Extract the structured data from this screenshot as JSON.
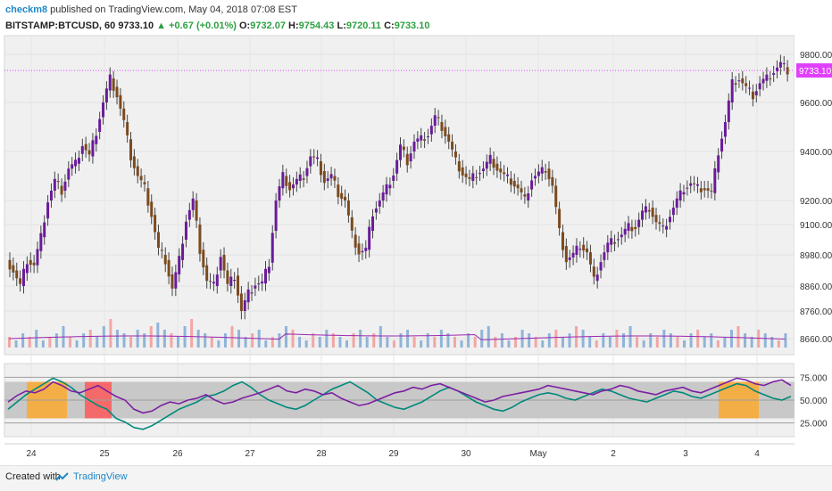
{
  "header": {
    "user": "checkm8",
    "published": "published on TradingView.com, May 04, 2018 07:08 EST",
    "symbol": "BITSTAMP:BTCUSD, 60",
    "last": "9733.10",
    "change": "▲ +0.67 (+0.01%)",
    "o_label": "O:",
    "o": "9732.07",
    "h_label": "H:",
    "h": "9754.43",
    "l_label": "L:",
    "l": "9720.11",
    "c_label": "C:",
    "c": "9733.10"
  },
  "footer": {
    "created": "Created with",
    "brand": "TradingView"
  },
  "colors": {
    "up": "#6a1b9a",
    "down": "#7b4a1e",
    "price_line": "#e040fb",
    "rsi_a": "#7b1fa2",
    "rsi_b": "#00897b",
    "heat": "#ffa726",
    "heat_strong": "#ff5252",
    "vol_up": "#90b4d8",
    "vol_down": "#f2a6a6",
    "vol_ma": "#9c27b0"
  },
  "chart_data": {
    "type": "line",
    "price_axis": {
      "ticks": [
        8660,
        8760,
        8860,
        8980,
        9100,
        9200,
        9400,
        9600,
        9800
      ],
      "tick_labels": [
        "8660.00",
        "8760.00",
        "8860.00",
        "8980.00",
        "9100.00",
        "9200.00",
        "9400.00",
        "9600.00",
        "9800.00"
      ],
      "current": 9733.1,
      "current_label": "9733.10"
    },
    "rsi_axis": {
      "ticks": [
        25,
        50,
        75
      ],
      "tick_labels": [
        "25.000",
        "50.000",
        "75.000"
      ]
    },
    "x_labels": [
      "24",
      "25",
      "26",
      "27",
      "28",
      "29",
      "30",
      "May",
      "2",
      "3",
      "4"
    ],
    "price_path": [
      [
        0,
        8960
      ],
      [
        2,
        8920
      ],
      [
        4,
        8860
      ],
      [
        6,
        8960
      ],
      [
        8,
        8940
      ],
      [
        10,
        9050
      ],
      [
        12,
        9200
      ],
      [
        14,
        9280
      ],
      [
        16,
        9240
      ],
      [
        18,
        9330
      ],
      [
        20,
        9350
      ],
      [
        22,
        9430
      ],
      [
        24,
        9380
      ],
      [
        26,
        9480
      ],
      [
        28,
        9600
      ],
      [
        30,
        9700
      ],
      [
        32,
        9630
      ],
      [
        34,
        9520
      ],
      [
        36,
        9380
      ],
      [
        38,
        9300
      ],
      [
        40,
        9250
      ],
      [
        42,
        9140
      ],
      [
        44,
        9000
      ],
      [
        46,
        8960
      ],
      [
        48,
        8850
      ],
      [
        50,
        8960
      ],
      [
        52,
        9120
      ],
      [
        54,
        9200
      ],
      [
        56,
        9000
      ],
      [
        58,
        8880
      ],
      [
        60,
        8860
      ],
      [
        62,
        8980
      ],
      [
        64,
        8860
      ],
      [
        66,
        8900
      ],
      [
        68,
        8760
      ],
      [
        70,
        8830
      ],
      [
        72,
        8870
      ],
      [
        74,
        8870
      ],
      [
        76,
        8950
      ],
      [
        78,
        9200
      ],
      [
        80,
        9300
      ],
      [
        82,
        9250
      ],
      [
        84,
        9280
      ],
      [
        86,
        9300
      ],
      [
        88,
        9380
      ],
      [
        90,
        9360
      ],
      [
        92,
        9280
      ],
      [
        94,
        9300
      ],
      [
        96,
        9230
      ],
      [
        98,
        9200
      ],
      [
        100,
        9060
      ],
      [
        102,
        8990
      ],
      [
        104,
        9000
      ],
      [
        106,
        9150
      ],
      [
        108,
        9200
      ],
      [
        110,
        9250
      ],
      [
        112,
        9310
      ],
      [
        114,
        9420
      ],
      [
        116,
        9360
      ],
      [
        118,
        9440
      ],
      [
        120,
        9450
      ],
      [
        122,
        9470
      ],
      [
        124,
        9540
      ],
      [
        126,
        9500
      ],
      [
        128,
        9440
      ],
      [
        130,
        9360
      ],
      [
        132,
        9310
      ],
      [
        134,
        9280
      ],
      [
        136,
        9310
      ],
      [
        138,
        9330
      ],
      [
        140,
        9370
      ],
      [
        142,
        9330
      ],
      [
        144,
        9300
      ],
      [
        146,
        9280
      ],
      [
        148,
        9250
      ],
      [
        150,
        9200
      ],
      [
        152,
        9290
      ],
      [
        154,
        9310
      ],
      [
        156,
        9330
      ],
      [
        158,
        9260
      ],
      [
        160,
        9070
      ],
      [
        162,
        8960
      ],
      [
        164,
        8980
      ],
      [
        166,
        9020
      ],
      [
        168,
        8990
      ],
      [
        170,
        8880
      ],
      [
        172,
        8960
      ],
      [
        174,
        9020
      ],
      [
        176,
        9040
      ],
      [
        178,
        9060
      ],
      [
        180,
        9090
      ],
      [
        182,
        9090
      ],
      [
        184,
        9150
      ],
      [
        186,
        9170
      ],
      [
        188,
        9110
      ],
      [
        190,
        9080
      ],
      [
        192,
        9140
      ],
      [
        194,
        9200
      ],
      [
        196,
        9250
      ],
      [
        198,
        9270
      ],
      [
        200,
        9250
      ],
      [
        202,
        9250
      ],
      [
        204,
        9230
      ],
      [
        206,
        9400
      ],
      [
        208,
        9520
      ],
      [
        210,
        9680
      ],
      [
        212,
        9700
      ],
      [
        214,
        9660
      ],
      [
        216,
        9630
      ],
      [
        218,
        9680
      ],
      [
        220,
        9700
      ],
      [
        222,
        9730
      ],
      [
        224,
        9760
      ],
      [
        226,
        9733
      ]
    ],
    "volume": [
      3,
      2,
      4,
      3,
      5,
      2,
      3,
      4,
      6,
      3,
      2,
      4,
      5,
      3,
      6,
      8,
      5,
      4,
      3,
      5,
      4,
      6,
      7,
      5,
      4,
      3,
      6,
      8,
      5,
      4,
      3,
      2,
      4,
      6,
      5,
      3,
      4,
      5,
      2,
      3,
      4,
      6,
      5,
      3,
      2,
      4,
      3,
      5,
      4,
      3,
      2,
      4,
      5,
      3,
      4,
      6,
      3,
      2,
      4,
      5,
      3,
      2,
      4,
      3,
      5,
      4,
      3,
      2,
      4,
      3,
      5,
      6,
      3,
      4,
      2,
      3,
      5,
      4,
      3,
      2,
      4,
      5,
      3,
      4,
      6,
      5,
      3,
      2,
      4,
      3,
      5,
      4,
      6,
      3,
      2,
      4,
      3,
      5,
      4,
      3,
      2,
      4,
      5,
      3,
      4,
      2,
      3,
      5,
      6,
      4,
      3,
      5,
      4,
      3,
      2,
      4
    ],
    "rsi_a": [
      48,
      55,
      60,
      58,
      62,
      70,
      66,
      60,
      58,
      62,
      66,
      60,
      54,
      50,
      40,
      36,
      38,
      44,
      48,
      46,
      50,
      52,
      56,
      50,
      46,
      48,
      52,
      55,
      58,
      62,
      66,
      60,
      58,
      62,
      60,
      56,
      58,
      52,
      48,
      44,
      46,
      50,
      54,
      58,
      60,
      64,
      62,
      66,
      68,
      64,
      60,
      56,
      52,
      48,
      50,
      54,
      56,
      58,
      60,
      62,
      66,
      64,
      62,
      60,
      58,
      56,
      60,
      62,
      66,
      64,
      60,
      58,
      56,
      60,
      62,
      64,
      60,
      58,
      62,
      66,
      70,
      74,
      72,
      68,
      66,
      70,
      72,
      66
    ],
    "rsi_b": [
      40,
      48,
      56,
      62,
      68,
      74,
      70,
      64,
      56,
      50,
      44,
      40,
      30,
      26,
      20,
      18,
      22,
      28,
      34,
      40,
      44,
      48,
      54,
      56,
      60,
      66,
      70,
      64,
      56,
      50,
      46,
      42,
      40,
      44,
      50,
      56,
      62,
      66,
      70,
      64,
      58,
      50,
      46,
      42,
      40,
      44,
      48,
      54,
      60,
      64,
      60,
      54,
      48,
      44,
      40,
      38,
      42,
      48,
      52,
      56,
      58,
      56,
      52,
      50,
      54,
      58,
      62,
      60,
      56,
      52,
      50,
      48,
      52,
      56,
      60,
      58,
      54,
      52,
      56,
      60,
      64,
      68,
      66,
      60,
      56,
      52,
      50,
      54
    ]
  }
}
